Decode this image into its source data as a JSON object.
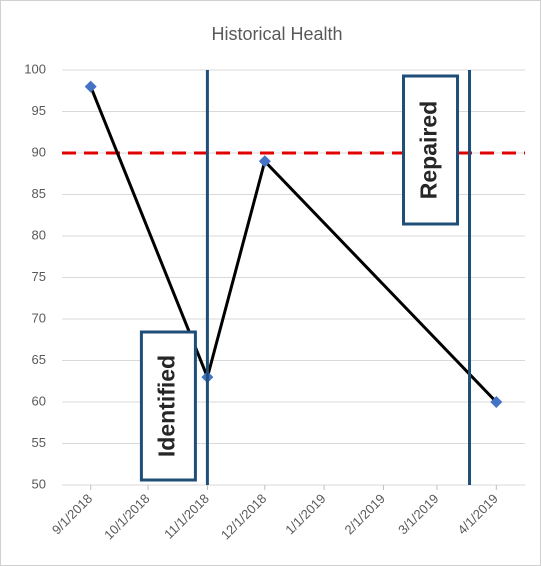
{
  "chart_data": {
    "type": "line",
    "title": "Historical Health",
    "x": [
      "9/1/2018",
      "11/1/2018",
      "12/1/2018",
      "4/1/2019"
    ],
    "series": [
      {
        "color": "#000000",
        "marker_color": "#4472c4",
        "values": [
          98,
          63,
          89,
          60
        ]
      }
    ],
    "xlim": [
      "8/17/2018",
      "4/16/2019"
    ],
    "xticks": [
      "9/1/2018",
      "10/1/2018",
      "11/1/2018",
      "12/1/2018",
      "1/1/2019",
      "2/1/2019",
      "3/1/2019",
      "4/1/2019"
    ],
    "ylim": [
      50,
      100
    ],
    "yticks": [
      50,
      55,
      60,
      65,
      70,
      75,
      80,
      85,
      90,
      95,
      100
    ],
    "grid": true,
    "threshold": {
      "value": 90,
      "color": "#e00000"
    },
    "annotations": [
      {
        "text": "Identified",
        "x": "11/1/2018",
        "color": "#1f4e79",
        "box": "bottom"
      },
      {
        "text": "Repaired",
        "x": "3/18/2019",
        "color": "#1f4e79",
        "box": "top"
      }
    ]
  }
}
